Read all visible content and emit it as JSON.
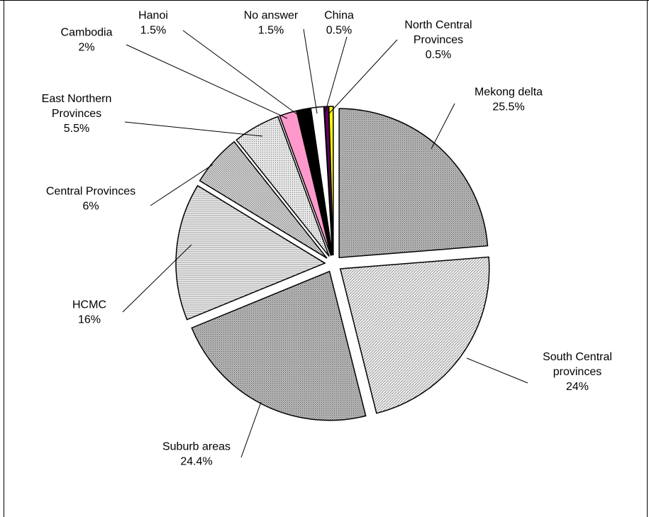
{
  "chart_data": {
    "type": "pie",
    "title": "",
    "slices": [
      {
        "label_lines": [
          "Mekong delta"
        ],
        "value_text": "25.5%",
        "value": 25.5,
        "fill": "#a6a6a6",
        "pattern": "dense-dots"
      },
      {
        "label_lines": [
          "South Central",
          "provinces"
        ],
        "value_text": "24%",
        "value": 24,
        "fill": "#e6e6e6",
        "pattern": "diagonal"
      },
      {
        "label_lines": [
          "Suburb areas"
        ],
        "value_text": "24.4%",
        "value": 24.4,
        "fill": "#a6a6a6",
        "pattern": "dense-dots"
      },
      {
        "label_lines": [
          "HCMC"
        ],
        "value_text": "16%",
        "value": 16,
        "fill": "#dcdcdc",
        "pattern": "horizontal"
      },
      {
        "label_lines": [
          "Central Provinces"
        ],
        "value_text": "6%",
        "value": 6,
        "fill": "#c8c8c8",
        "pattern": "diagonal-dense"
      },
      {
        "label_lines": [
          "East Northern",
          "Provinces"
        ],
        "value_text": "5.5%",
        "value": 5.5,
        "fill": "#d2d2d2",
        "pattern": "dots"
      },
      {
        "label_lines": [
          "Cambodia"
        ],
        "value_text": "2%",
        "value": 2,
        "fill": "#ff99cc",
        "pattern": "solid"
      },
      {
        "label_lines": [
          "Hanoi"
        ],
        "value_text": "1.5%",
        "value": 1.5,
        "fill": "#000000",
        "pattern": "solid"
      },
      {
        "label_lines": [
          "No answer"
        ],
        "value_text": "1.5%",
        "value": 1.5,
        "fill": "#ffffff",
        "pattern": "solid"
      },
      {
        "label_lines": [
          "China"
        ],
        "value_text": "0.5%",
        "value": 0.5,
        "fill": "#660066",
        "pattern": "solid"
      },
      {
        "label_lines": [
          "North Central",
          "Provinces"
        ],
        "value_text": "0.5%",
        "value": 0.5,
        "fill": "#ffff00",
        "pattern": "solid"
      }
    ],
    "exploded": true,
    "start_angle_deg": 0,
    "direction": "clockwise",
    "legend": "none",
    "data_labels": "outside-with-leader-lines"
  }
}
